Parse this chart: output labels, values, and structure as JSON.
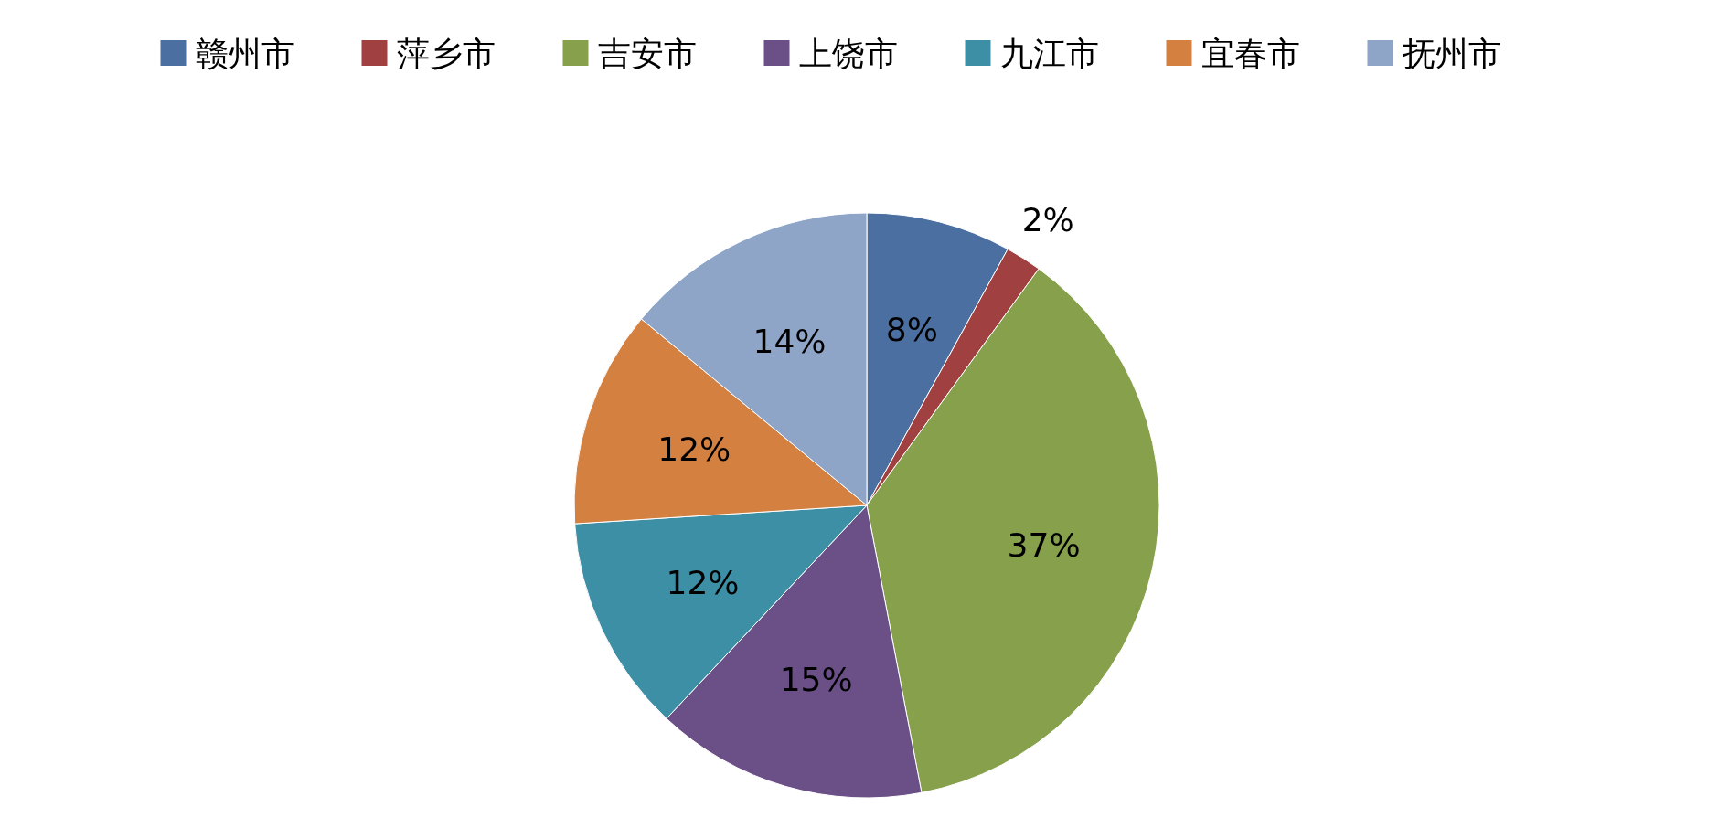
{
  "chart_data": {
    "type": "pie",
    "categories": [
      "赣州市",
      "萍乡市",
      "吉安市",
      "上饶市",
      "九江市",
      "宜春市",
      "抚州市"
    ],
    "values": [
      8,
      2,
      37,
      15,
      12,
      12,
      14
    ],
    "colors": [
      "#4a6fa0",
      "#a04040",
      "#86a04c",
      "#6b5088",
      "#3d8fa6",
      "#d38040",
      "#8ea5c8"
    ],
    "legend": "top",
    "value_labels": [
      "8%",
      "2%",
      "37%",
      "15%",
      "12%",
      "12%",
      "14%"
    ]
  }
}
